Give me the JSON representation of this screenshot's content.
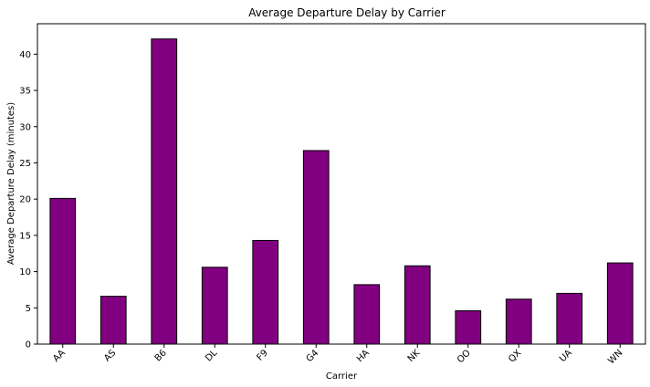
{
  "chart_data": {
    "type": "bar",
    "title": "Average Departure Delay by Carrier",
    "xlabel": "Carrier",
    "ylabel": "Average Departure Delay (minutes)",
    "categories": [
      "AA",
      "AS",
      "B6",
      "DL",
      "F9",
      "G4",
      "HA",
      "NK",
      "OO",
      "QX",
      "UA",
      "WN"
    ],
    "values": [
      20.1,
      6.6,
      42.1,
      10.6,
      14.3,
      26.7,
      8.2,
      10.8,
      4.6,
      6.2,
      7.0,
      11.2
    ],
    "ylim": [
      0,
      44.2
    ],
    "yticks": [
      0,
      5,
      10,
      15,
      20,
      25,
      30,
      35,
      40
    ],
    "bar_color": "#800080",
    "edge_color": "#000000",
    "grid": false,
    "legend": false
  }
}
